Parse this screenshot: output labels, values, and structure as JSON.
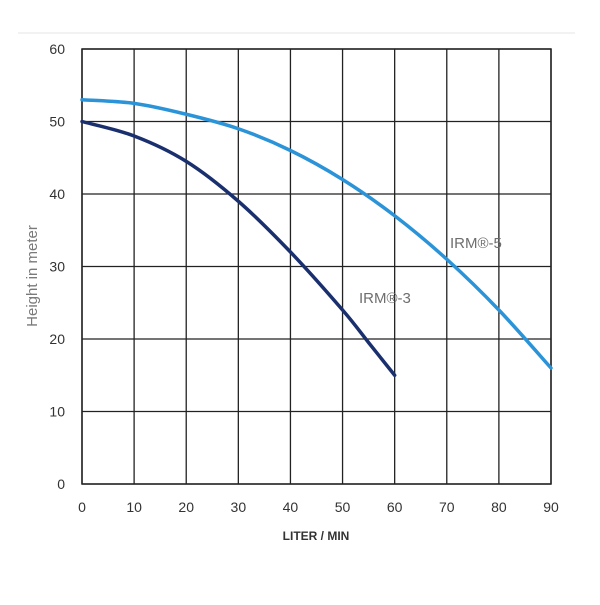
{
  "chart_data": {
    "type": "line",
    "xlabel": "LITER / MIN",
    "ylabel": "Height in meter",
    "xlim": [
      0,
      90
    ],
    "ylim": [
      0,
      60
    ],
    "xticks": [
      0,
      10,
      20,
      30,
      40,
      50,
      60,
      70,
      80,
      90
    ],
    "yticks": [
      0,
      10,
      20,
      30,
      40,
      50,
      60
    ],
    "grid": true,
    "legend": "labels placed beside the curves",
    "series": [
      {
        "name": "IRM®-3",
        "color": "#1a2f6e",
        "x": [
          0,
          10,
          20,
          30,
          40,
          50,
          55,
          60
        ],
        "y": [
          50,
          48,
          44.5,
          39,
          32,
          24,
          19.5,
          15
        ]
      },
      {
        "name": "IRM®-5",
        "color": "#2b93d8",
        "x": [
          0,
          10,
          20,
          30,
          40,
          50,
          60,
          70,
          80,
          90
        ],
        "y": [
          53,
          52.5,
          51,
          49,
          46,
          42,
          37,
          31,
          24,
          16
        ]
      }
    ]
  }
}
